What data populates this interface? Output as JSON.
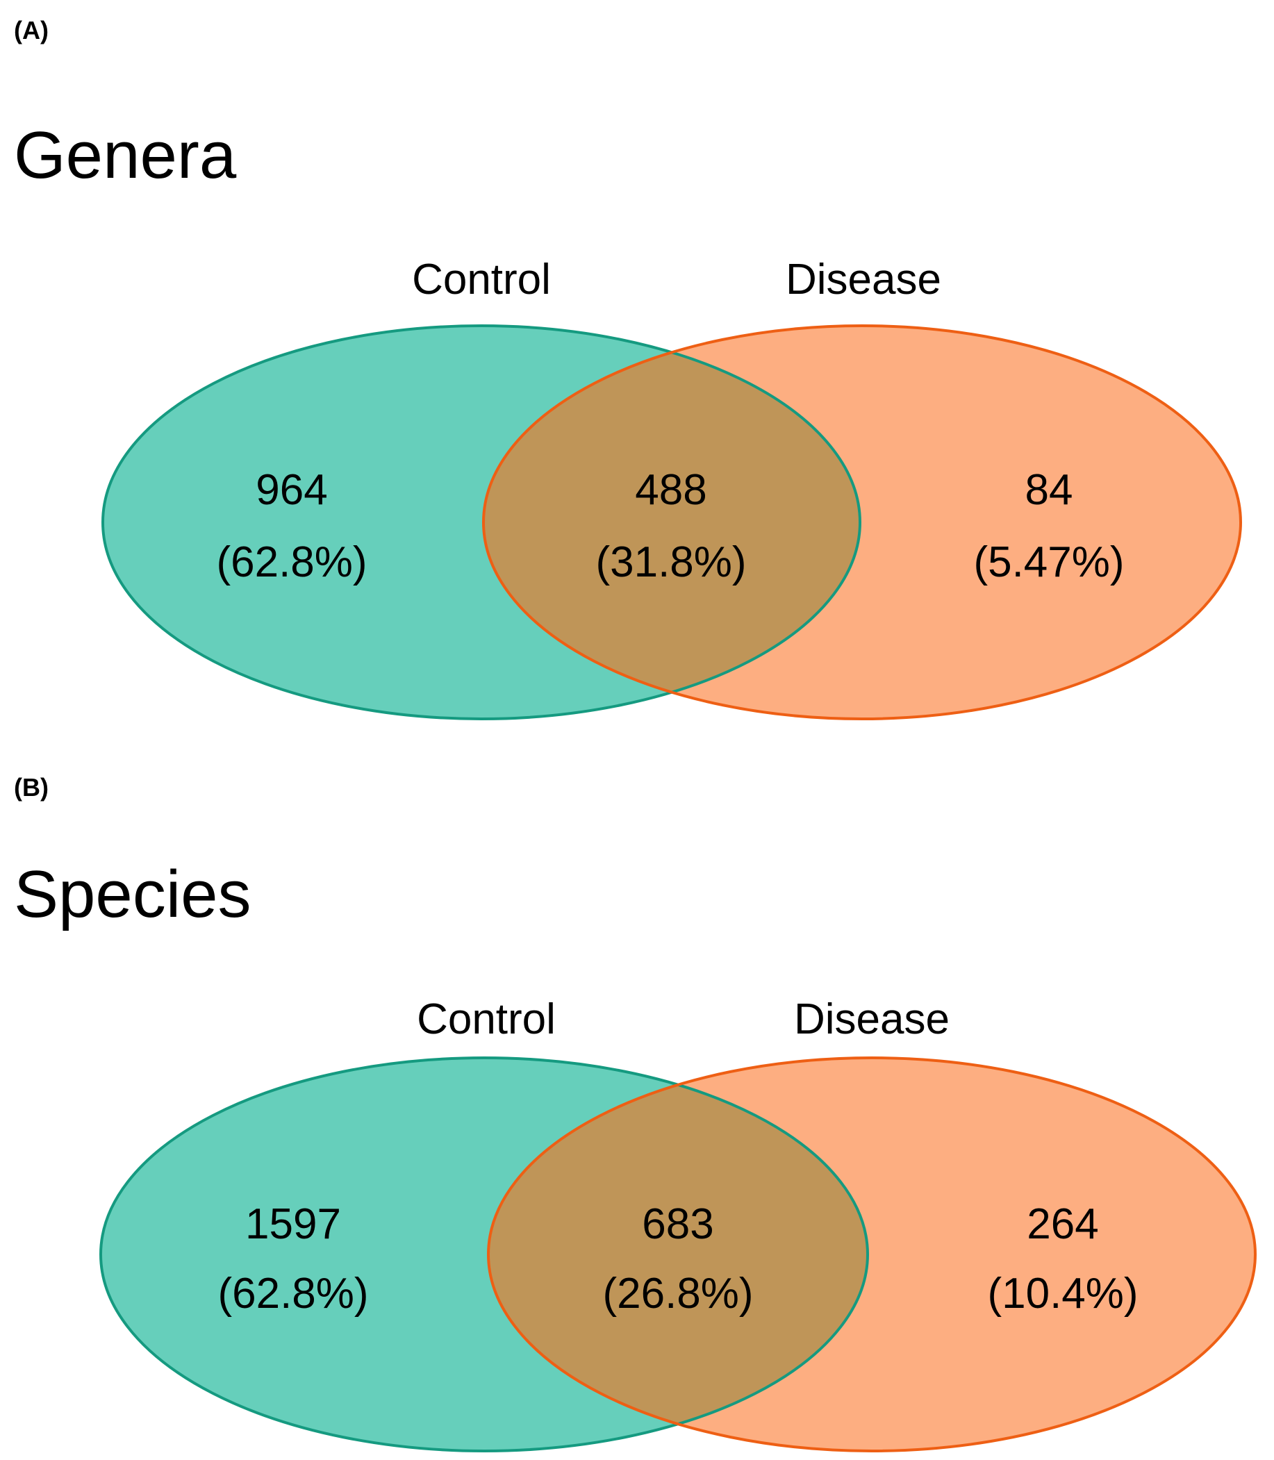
{
  "colors": {
    "control_fill": "#66cfbb",
    "control_stroke": "#159a80",
    "disease_fill": "#fdae81",
    "disease_stroke": "#ee5f14",
    "overlap_fill": "#bf9558"
  },
  "panels": [
    {
      "label": "(A)",
      "title": "Genera",
      "sets": {
        "left": "Control",
        "right": "Disease"
      },
      "regions": {
        "left_only": {
          "count": "964",
          "pct": "(62.8%)"
        },
        "both": {
          "count": "488",
          "pct": "(31.8%)"
        },
        "right_only": {
          "count": "84",
          "pct": "(5.47%)"
        }
      }
    },
    {
      "label": "(B)",
      "title": "Species",
      "sets": {
        "left": "Control",
        "right": "Disease"
      },
      "regions": {
        "left_only": {
          "count": "1597",
          "pct": "(62.8%)"
        },
        "both": {
          "count": "683",
          "pct": "(26.8%)"
        },
        "right_only": {
          "count": "264",
          "pct": "(10.4%)"
        }
      }
    }
  ]
}
